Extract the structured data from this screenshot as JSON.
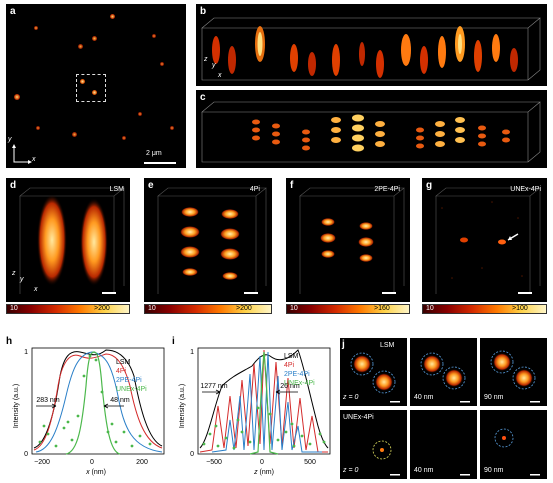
{
  "panels": {
    "a": {
      "label": "a",
      "scale": "2 μm",
      "axis_y": "y",
      "axis_x": "x"
    },
    "b": {
      "label": "b",
      "axis_z": "z",
      "axis_y": "y",
      "axis_x": "x"
    },
    "c": {
      "label": "c"
    },
    "d": {
      "label": "d",
      "title": "LSM",
      "axis_z": "z",
      "axis_y": "y",
      "axis_x": "x",
      "cb_min": "10",
      "cb_max": ">200"
    },
    "e": {
      "label": "e",
      "title": "4Pi",
      "cb_min": "10",
      "cb_max": ">200"
    },
    "f": {
      "label": "f",
      "title": "2PE-4Pi",
      "cb_min": "10",
      "cb_max": ">160"
    },
    "g": {
      "label": "g",
      "title": "UNEx-4Pi",
      "cb_min": "10",
      "cb_max": ">100"
    },
    "j": {
      "label": "j",
      "top_title": "LSM",
      "bottom_title": "UNEx-4Pi",
      "z_labels": [
        "z = 0",
        "40 nm",
        "90 nm"
      ]
    }
  },
  "plot_h": {
    "label": "h",
    "ylabel": "Intensity (a.u.)",
    "xlabel_var": "x",
    "xlabel_unit": " (nm)",
    "yticks": [
      "0",
      "1"
    ],
    "xticks": [
      "−200",
      "0",
      "200"
    ],
    "legend": [
      {
        "name": "LSM",
        "color": "#000000"
      },
      {
        "name": "4Pi",
        "color": "#d42a2a"
      },
      {
        "name": "2PE-4Pi",
        "color": "#2a7fc8"
      },
      {
        "name": "UNEx-4Pi",
        "color": "#4bb84b"
      }
    ],
    "annotations": [
      "283 nm",
      "48 nm"
    ]
  },
  "plot_i": {
    "label": "i",
    "ylabel": "Intensity (a.u.)",
    "xlabel_var": "z",
    "xlabel_unit": " (nm)",
    "yticks": [
      "0",
      "1"
    ],
    "xticks": [
      "−500",
      "0",
      "500"
    ],
    "legend": [
      {
        "name": "LSM",
        "color": "#000000"
      },
      {
        "name": "4Pi",
        "color": "#d42a2a"
      },
      {
        "name": "2PE-4Pi",
        "color": "#2a7fc8"
      },
      {
        "name": "UNEx-4Pi",
        "color": "#4bb84b"
      }
    ],
    "annotations": [
      "1277 nm",
      "26 nm"
    ]
  }
}
